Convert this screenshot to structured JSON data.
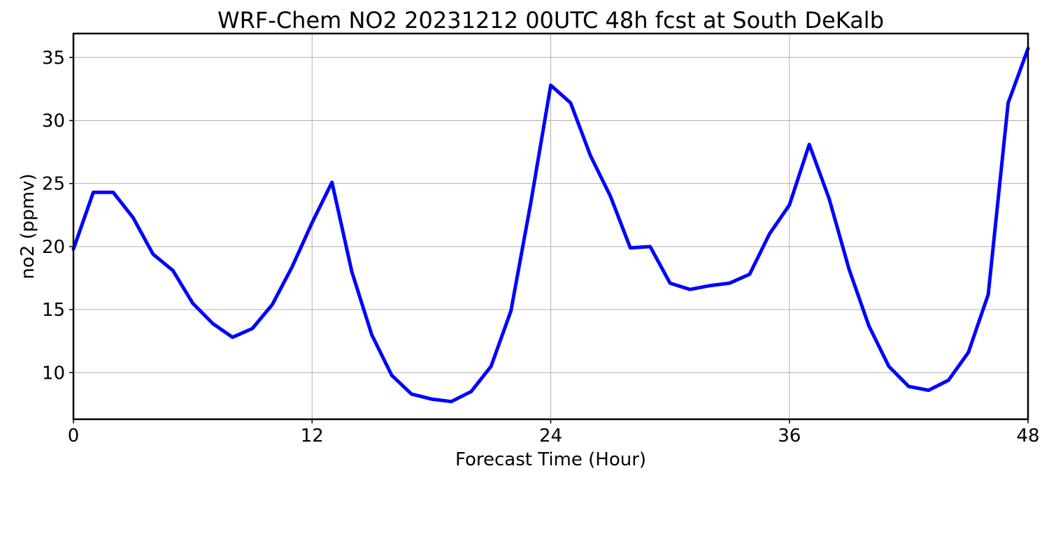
{
  "chart_data": {
    "type": "line",
    "title": "WRF-Chem NO2  20231212 00UTC 48h fcst at South DeKalb",
    "xlabel": "Forecast Time (Hour)",
    "ylabel": "no2  (ppmv)",
    "xlim": [
      0,
      48
    ],
    "ylim": [
      6.3,
      36.9
    ],
    "xticks": [
      0,
      12,
      24,
      36,
      48
    ],
    "yticks": [
      10,
      15,
      20,
      25,
      30,
      35
    ],
    "grid": true,
    "line_color": "#0000ff",
    "series": [
      {
        "x": [
          0,
          1,
          2,
          3,
          4,
          5,
          6,
          7,
          8,
          9,
          10,
          11,
          12,
          13,
          14,
          15,
          16,
          17,
          18,
          19,
          20,
          21,
          22,
          23,
          24,
          25,
          26,
          27,
          28,
          29,
          30,
          31,
          32,
          33,
          34,
          35,
          36,
          37,
          38,
          39,
          40,
          41,
          42,
          43,
          44,
          45,
          46,
          47,
          48
        ],
        "values": [
          19.8,
          24.3,
          24.3,
          22.3,
          19.4,
          18.1,
          15.5,
          13.9,
          12.8,
          13.5,
          15.4,
          18.4,
          21.9,
          25.1,
          18.0,
          13.0,
          9.8,
          8.3,
          7.9,
          7.7,
          8.5,
          10.5,
          14.9,
          23.5,
          32.8,
          31.4,
          27.2,
          24.0,
          19.9,
          20.0,
          17.1,
          16.6,
          16.9,
          17.1,
          17.8,
          21.0,
          23.3,
          28.1,
          23.8,
          18.2,
          13.7,
          10.5,
          8.9,
          8.6,
          9.4,
          11.6,
          16.2,
          31.4,
          35.7
        ]
      }
    ]
  }
}
